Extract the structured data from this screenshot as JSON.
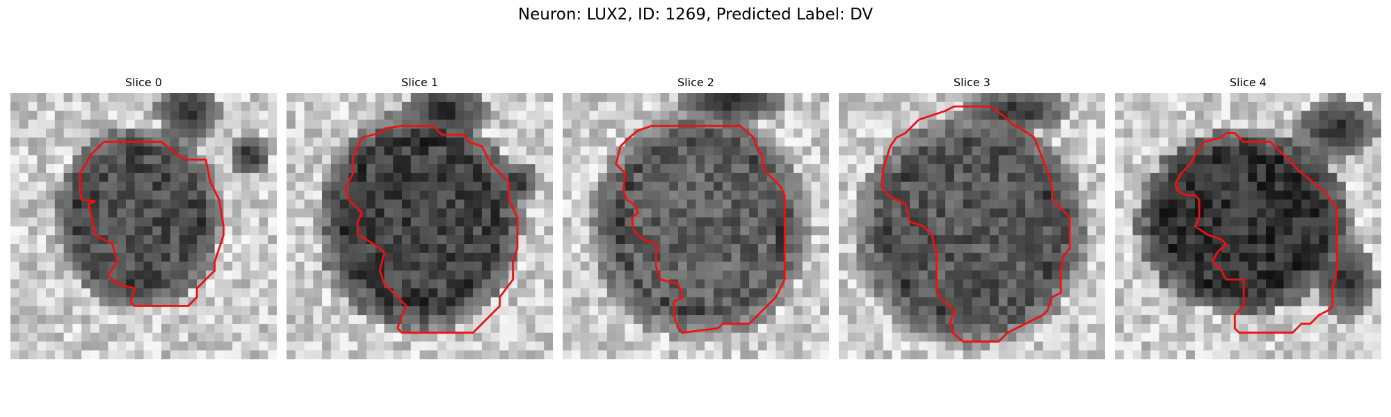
{
  "figure": {
    "title": "Neuron: LUX2, ID: 1269, Predicted Label: DV"
  },
  "panels": [
    {
      "title": "Slice 0"
    },
    {
      "title": "Slice 1"
    },
    {
      "title": "Slice 2"
    },
    {
      "title": "Slice 3"
    },
    {
      "title": "Slice 4"
    }
  ],
  "colors": {
    "contour": "#ee1111"
  }
}
